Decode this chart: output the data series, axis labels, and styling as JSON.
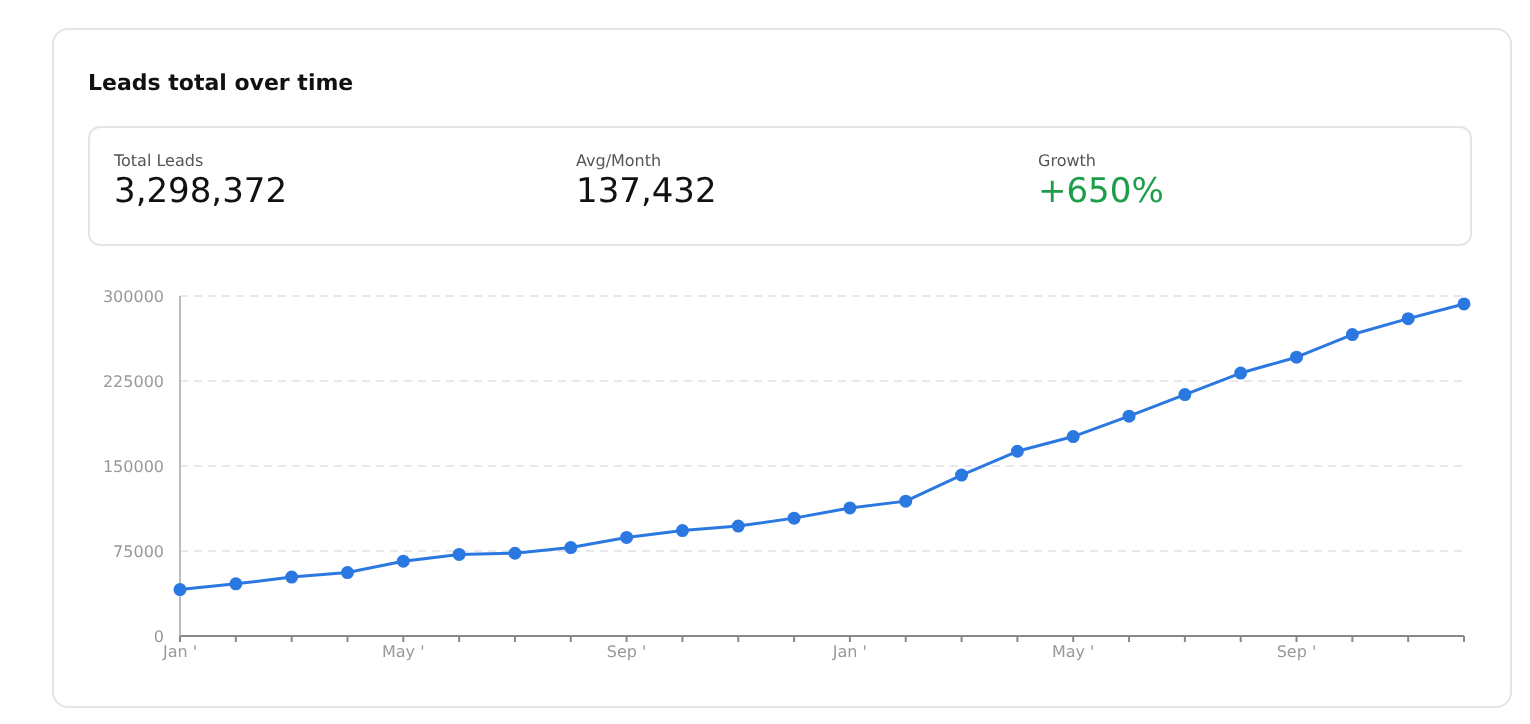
{
  "chart_data": [
    {
      "type": "other",
      "title": "Leads total over time",
      "annotations": [
        "Total Leads",
        "3,298,372",
        "Avg/Month",
        "137,432",
        "Growth",
        "+650%"
      ]
    },
    {
      "type": "line",
      "categories": [
        "Jan '",
        null,
        null,
        null,
        "May '",
        null,
        null,
        null,
        "Sep '",
        null,
        null,
        null,
        "Jan '",
        null,
        null,
        null,
        "May '",
        null,
        null,
        null,
        "Sep '",
        null,
        null,
        null
      ],
      "series": [
        {
          "color": "#2a78e0",
          "values": [
            41000,
            46000,
            52000,
            56000,
            66000,
            72000,
            73000,
            78000,
            87000,
            93000,
            97000,
            104000,
            113000,
            119000,
            142000,
            163000,
            176000,
            194000,
            213000,
            232000,
            246000,
            266000,
            280000,
            293000
          ]
        }
      ],
      "ylim": [
        0,
        300000
      ],
      "yticks": [
        0,
        75000,
        150000,
        225000,
        300000
      ],
      "grid": "y",
      "marker": "circle",
      "line_style": "solid"
    }
  ]
}
